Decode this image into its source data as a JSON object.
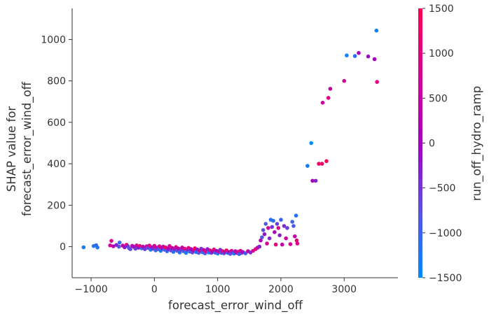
{
  "chart_data": {
    "type": "scatter",
    "xlabel": "forecast_error_wind_off",
    "ylabel_lines": [
      "SHAP value for",
      "forecast_error_wind_off"
    ],
    "colorbar_label": "run_off_hydro_ramp",
    "xlim": [
      -1300,
      3850
    ],
    "ylim": [
      -150,
      1150
    ],
    "x_ticks": [
      -1000,
      0,
      1000,
      2000,
      3000
    ],
    "x_tick_labels": [
      "−1000",
      "0",
      "1000",
      "2000",
      "3000"
    ],
    "y_ticks": [
      0,
      200,
      400,
      600,
      800,
      1000
    ],
    "y_tick_labels": [
      "0",
      "200",
      "400",
      "600",
      "800",
      "1000"
    ],
    "color_range": [
      -1500,
      1500
    ],
    "colorbar_ticks": [
      1500,
      1000,
      500,
      0,
      -500,
      -1000,
      -1500
    ],
    "colorbar_tick_labels": [
      "1500",
      "1000",
      "500",
      "0",
      "−500",
      "−1000",
      "−1500"
    ],
    "colormap": [
      "#008afb",
      "#5c50e2",
      "#a400be",
      "#d40395",
      "#ff0052"
    ],
    "grid": false,
    "points": [
      [
        -1120,
        -3,
        -1300
      ],
      [
        -960,
        3,
        -1200
      ],
      [
        -920,
        7,
        -1100
      ],
      [
        -900,
        -4,
        -1250
      ],
      [
        -700,
        6,
        700
      ],
      [
        -680,
        28,
        900
      ],
      [
        -650,
        2,
        300
      ],
      [
        -600,
        8,
        -300
      ],
      [
        -560,
        0,
        -800
      ],
      [
        -550,
        20,
        -1100
      ],
      [
        -500,
        5,
        500
      ],
      [
        -470,
        -3,
        -200
      ],
      [
        -440,
        9,
        1100
      ],
      [
        -420,
        2,
        -500
      ],
      [
        -400,
        -8,
        -900
      ],
      [
        -380,
        -12,
        -700
      ],
      [
        -350,
        4,
        300
      ],
      [
        -320,
        -2,
        0
      ],
      [
        -300,
        -10,
        -600
      ],
      [
        -280,
        6,
        800
      ],
      [
        -250,
        -5,
        -300
      ],
      [
        -230,
        3,
        1200
      ],
      [
        -200,
        -8,
        -1000
      ],
      [
        -180,
        0,
        200
      ],
      [
        -150,
        -12,
        -500
      ],
      [
        -120,
        2,
        600
      ],
      [
        -100,
        -6,
        -800
      ],
      [
        -80,
        5,
        1000
      ],
      [
        -60,
        -15,
        -1200
      ],
      [
        -40,
        -3,
        100
      ],
      [
        -20,
        -10,
        -400
      ],
      [
        0,
        4,
        700
      ],
      [
        20,
        -18,
        -1100
      ],
      [
        40,
        -5,
        300
      ],
      [
        60,
        -12,
        -700
      ],
      [
        80,
        2,
        900
      ],
      [
        100,
        -20,
        -1300
      ],
      [
        120,
        -8,
        -200
      ],
      [
        140,
        0,
        500
      ],
      [
        160,
        -15,
        -900
      ],
      [
        180,
        -4,
        1200
      ],
      [
        200,
        -22,
        -1000
      ],
      [
        220,
        -10,
        0
      ],
      [
        240,
        3,
        800
      ],
      [
        260,
        -18,
        -600
      ],
      [
        280,
        -6,
        400
      ],
      [
        300,
        -25,
        -1200
      ],
      [
        320,
        -12,
        -300
      ],
      [
        340,
        -2,
        1000
      ],
      [
        360,
        -20,
        -800
      ],
      [
        380,
        -9,
        200
      ],
      [
        400,
        -28,
        -1100
      ],
      [
        420,
        -14,
        -500
      ],
      [
        440,
        -4,
        600
      ],
      [
        460,
        -22,
        -900
      ],
      [
        480,
        -10,
        900
      ],
      [
        500,
        -30,
        -1300
      ],
      [
        520,
        -16,
        -400
      ],
      [
        540,
        -6,
        1100
      ],
      [
        560,
        -24,
        -1000
      ],
      [
        580,
        -12,
        100
      ],
      [
        600,
        -28,
        -700
      ],
      [
        620,
        -18,
        300
      ],
      [
        640,
        -8,
        1300
      ],
      [
        660,
        -26,
        -1200
      ],
      [
        680,
        -14,
        -200
      ],
      [
        700,
        -30,
        -900
      ],
      [
        720,
        -20,
        700
      ],
      [
        740,
        -10,
        -500
      ],
      [
        760,
        -27,
        -1100
      ],
      [
        780,
        -16,
        500
      ],
      [
        800,
        -32,
        -800
      ],
      [
        820,
        -22,
        1000
      ],
      [
        840,
        -12,
        -300
      ],
      [
        860,
        -28,
        -1300
      ],
      [
        880,
        -18,
        800
      ],
      [
        900,
        -30,
        -600
      ],
      [
        920,
        -24,
        200
      ],
      [
        940,
        -14,
        1200
      ],
      [
        960,
        -29,
        -1000
      ],
      [
        980,
        -20,
        -100
      ],
      [
        1000,
        -33,
        -1200
      ],
      [
        1020,
        -24,
        600
      ],
      [
        1040,
        -15,
        -400
      ],
      [
        1060,
        -30,
        -900
      ],
      [
        1080,
        -22,
        1000
      ],
      [
        1100,
        -32,
        -700
      ],
      [
        1120,
        -25,
        300
      ],
      [
        1140,
        -18,
        1300
      ],
      [
        1160,
        -30,
        -1100
      ],
      [
        1180,
        -26,
        0
      ],
      [
        1200,
        -35,
        -800
      ],
      [
        1220,
        -20,
        900
      ],
      [
        1240,
        -28,
        -500
      ],
      [
        1260,
        -33,
        -1200
      ],
      [
        1280,
        -22,
        500
      ],
      [
        1300,
        -30,
        -300
      ],
      [
        1320,
        -25,
        1100
      ],
      [
        1340,
        -36,
        -1000
      ],
      [
        1360,
        -20,
        700
      ],
      [
        1380,
        -30,
        -600
      ],
      [
        1400,
        -26,
        200
      ],
      [
        1440,
        -32,
        -900
      ],
      [
        1480,
        -22,
        400
      ],
      [
        1520,
        -28,
        -400
      ],
      [
        1560,
        -20,
        800
      ],
      [
        1600,
        -12,
        1000
      ],
      [
        1630,
        -5,
        600
      ],
      [
        1660,
        0,
        -300
      ],
      [
        1680,
        30,
        300
      ],
      [
        1700,
        45,
        -800
      ],
      [
        1720,
        80,
        -700
      ],
      [
        1740,
        60,
        -200
      ],
      [
        1760,
        110,
        -900
      ],
      [
        1780,
        15,
        800
      ],
      [
        1800,
        90,
        700
      ],
      [
        1820,
        40,
        -400
      ],
      [
        1840,
        130,
        -1200
      ],
      [
        1860,
        95,
        -500
      ],
      [
        1880,
        125,
        -1100
      ],
      [
        1900,
        70,
        200
      ],
      [
        1920,
        10,
        1000
      ],
      [
        1940,
        110,
        -600
      ],
      [
        1960,
        90,
        900
      ],
      [
        1980,
        55,
        -300
      ],
      [
        2000,
        130,
        -1000
      ],
      [
        2020,
        10,
        500
      ],
      [
        2050,
        100,
        -400
      ],
      [
        2080,
        40,
        700
      ],
      [
        2100,
        90,
        -600
      ],
      [
        2150,
        12,
        800
      ],
      [
        2180,
        120,
        -1000
      ],
      [
        2200,
        100,
        -900
      ],
      [
        2220,
        50,
        400
      ],
      [
        2240,
        150,
        -1200
      ],
      [
        2250,
        30,
        1100
      ],
      [
        2260,
        15,
        900
      ],
      [
        2420,
        390,
        -1300
      ],
      [
        2480,
        500,
        -1500
      ],
      [
        2500,
        318,
        100
      ],
      [
        2550,
        318,
        -300
      ],
      [
        2600,
        400,
        1300
      ],
      [
        2650,
        400,
        1200
      ],
      [
        2660,
        695,
        600
      ],
      [
        2720,
        413,
        1400
      ],
      [
        2750,
        718,
        900
      ],
      [
        2780,
        762,
        500
      ],
      [
        3000,
        800,
        600
      ],
      [
        3040,
        923,
        -1400
      ],
      [
        3170,
        920,
        -1100
      ],
      [
        3230,
        935,
        100
      ],
      [
        3380,
        918,
        -100
      ],
      [
        3480,
        905,
        0
      ],
      [
        3510,
        1043,
        -1400
      ],
      [
        3520,
        795,
        1000
      ]
    ]
  }
}
